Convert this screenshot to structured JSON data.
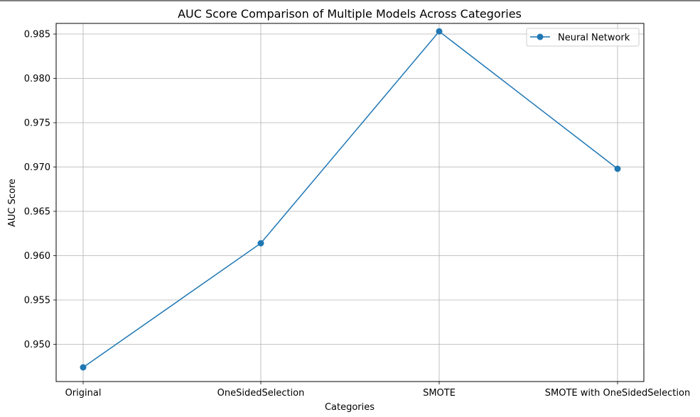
{
  "chart_data": {
    "type": "line",
    "title": "AUC Score Comparison of Multiple Models Across Categories",
    "xlabel": "Categories",
    "ylabel": "AUC Score",
    "categories": [
      "Original",
      "OneSidedSelection",
      "SMOTE",
      "SMOTE with OneSidedSelection"
    ],
    "series": [
      {
        "name": "Neural Network",
        "values": [
          0.9474,
          0.9614,
          0.9853,
          0.9698
        ],
        "color": "#1f77b4",
        "marker": "circle"
      }
    ],
    "ylim": [
      0.9458,
      0.9862
    ],
    "yticks": [
      0.95,
      0.955,
      0.96,
      0.965,
      0.97,
      0.975,
      0.98,
      0.985
    ],
    "ytick_labels": [
      "0.950",
      "0.955",
      "0.960",
      "0.965",
      "0.970",
      "0.975",
      "0.980",
      "0.985"
    ],
    "grid": true,
    "legend": "top-right"
  }
}
